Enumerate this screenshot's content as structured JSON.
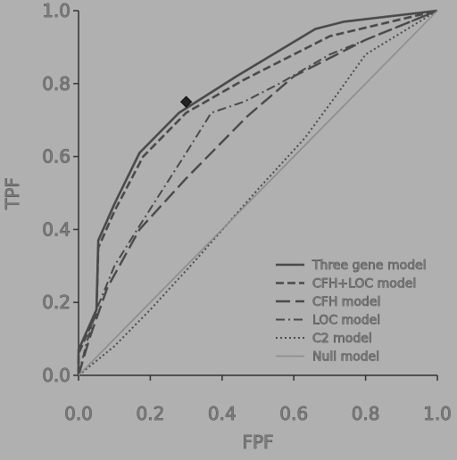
{
  "chart_data": {
    "type": "line",
    "title": "",
    "xlabel": "FPF",
    "ylabel": "TPF",
    "xlim": [
      0,
      1
    ],
    "ylim": [
      0,
      1
    ],
    "x_ticks": [
      "0.0",
      "0.2",
      "0.4",
      "0.6",
      "0.8",
      "1.0"
    ],
    "y_ticks": [
      "0.0",
      "0.2",
      "0.4",
      "0.6",
      "0.8",
      "1.0"
    ],
    "grid": false,
    "legend_position": "bottom-right",
    "marker_point": {
      "x": 0.3,
      "y": 0.75
    },
    "series": [
      {
        "name": "Three gene model",
        "style": "solid-thick",
        "points": [
          [
            0,
            0
          ],
          [
            0,
            0.07
          ],
          [
            0.05,
            0.18
          ],
          [
            0.055,
            0.37
          ],
          [
            0.1,
            0.47
          ],
          [
            0.17,
            0.61
          ],
          [
            0.28,
            0.72
          ],
          [
            0.44,
            0.82
          ],
          [
            0.66,
            0.95
          ],
          [
            0.74,
            0.97
          ],
          [
            1,
            1
          ]
        ]
      },
      {
        "name": "CFH+LOC model",
        "style": "dashed-thick",
        "points": [
          [
            0,
            0
          ],
          [
            0,
            0.06
          ],
          [
            0.05,
            0.17
          ],
          [
            0.055,
            0.35
          ],
          [
            0.1,
            0.45
          ],
          [
            0.18,
            0.6
          ],
          [
            0.3,
            0.72
          ],
          [
            0.46,
            0.81
          ],
          [
            0.7,
            0.93
          ],
          [
            1,
            1
          ]
        ]
      },
      {
        "name": "CFH model",
        "style": "long-dash",
        "points": [
          [
            0,
            0
          ],
          [
            0.03,
            0.1
          ],
          [
            0.08,
            0.24
          ],
          [
            0.17,
            0.4
          ],
          [
            0.3,
            0.54
          ],
          [
            0.47,
            0.71
          ],
          [
            0.6,
            0.82
          ],
          [
            0.8,
            0.92
          ],
          [
            1,
            1
          ]
        ]
      },
      {
        "name": "LOC model",
        "style": "dash-dot",
        "points": [
          [
            0,
            0
          ],
          [
            0.02,
            0.08
          ],
          [
            0.05,
            0.18
          ],
          [
            0.1,
            0.3
          ],
          [
            0.17,
            0.41
          ],
          [
            0.3,
            0.61
          ],
          [
            0.37,
            0.72
          ],
          [
            0.46,
            0.75
          ],
          [
            0.56,
            0.8
          ],
          [
            0.7,
            0.88
          ],
          [
            1,
            1
          ]
        ]
      },
      {
        "name": "C2 model",
        "style": "dotted",
        "points": [
          [
            0,
            0
          ],
          [
            0.1,
            0.08
          ],
          [
            0.2,
            0.18
          ],
          [
            0.33,
            0.32
          ],
          [
            0.5,
            0.51
          ],
          [
            0.63,
            0.65
          ],
          [
            0.72,
            0.77
          ],
          [
            0.8,
            0.88
          ],
          [
            1,
            1
          ]
        ]
      },
      {
        "name": "Null model",
        "style": "solid-thin",
        "points": [
          [
            0,
            0
          ],
          [
            1,
            1
          ]
        ]
      }
    ]
  },
  "colors": {
    "background": "#b0b0b0",
    "line": "#4a4a4a",
    "null_line": "#8c8c8c"
  }
}
